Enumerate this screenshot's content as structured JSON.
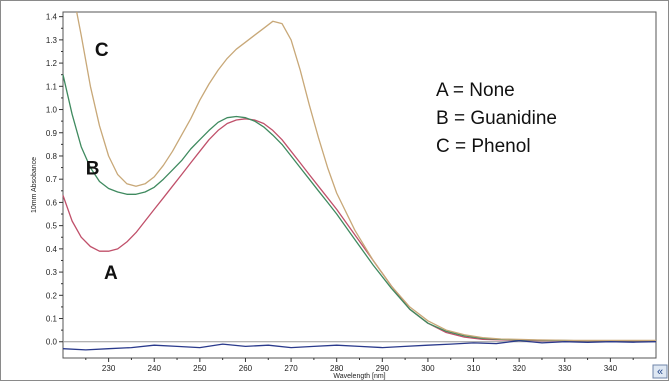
{
  "chart_data": {
    "type": "line",
    "xlabel": "Wavelength [nm]",
    "ylabel": "10mm Absobance",
    "xlim": [
      220,
      350
    ],
    "ylim": [
      -0.07,
      1.42
    ],
    "x_ticks": [
      230,
      240,
      250,
      260,
      270,
      280,
      290,
      300,
      310,
      320,
      330,
      340
    ],
    "y_ticks": [
      0.0,
      0.1,
      0.2,
      0.3,
      0.4,
      0.5,
      0.6,
      0.7,
      0.8,
      0.9,
      1.0,
      1.1,
      1.2,
      1.3,
      1.4
    ],
    "grid": false,
    "legend": {
      "position": "top-right",
      "entries": [
        "A = None",
        "B = Guanidine",
        "C = Phenol"
      ]
    },
    "series": [
      {
        "label": "A",
        "color": "#c0506a",
        "x": [
          220,
          222,
          224,
          226,
          228,
          230,
          232,
          234,
          236,
          238,
          240,
          242,
          244,
          246,
          248,
          250,
          252,
          254,
          256,
          258,
          260,
          262,
          264,
          266,
          268,
          270,
          272,
          274,
          276,
          278,
          280,
          284,
          288,
          292,
          296,
          300,
          304,
          308,
          312,
          316,
          320,
          324,
          328,
          332,
          336,
          340,
          344,
          350
        ],
        "y": [
          0.63,
          0.52,
          0.45,
          0.41,
          0.39,
          0.39,
          0.4,
          0.43,
          0.47,
          0.52,
          0.57,
          0.62,
          0.67,
          0.72,
          0.77,
          0.82,
          0.87,
          0.91,
          0.94,
          0.955,
          0.96,
          0.955,
          0.94,
          0.91,
          0.87,
          0.82,
          0.77,
          0.72,
          0.67,
          0.62,
          0.57,
          0.46,
          0.35,
          0.24,
          0.14,
          0.08,
          0.04,
          0.02,
          0.01,
          0.008,
          0.006,
          0.005,
          0.005,
          0.004,
          0.004,
          0.004,
          0.004,
          0.004
        ]
      },
      {
        "label": "B",
        "color": "#3f8a5f",
        "x": [
          220,
          222,
          224,
          226,
          228,
          230,
          232,
          234,
          236,
          238,
          240,
          242,
          244,
          246,
          248,
          250,
          252,
          254,
          256,
          258,
          260,
          262,
          264,
          266,
          268,
          270,
          272,
          274,
          276,
          278,
          280,
          284,
          288,
          292,
          296,
          300,
          304,
          308,
          312,
          316,
          320,
          324,
          328,
          332,
          336,
          340,
          344,
          350
        ],
        "y": [
          1.15,
          0.98,
          0.84,
          0.75,
          0.69,
          0.66,
          0.645,
          0.635,
          0.635,
          0.645,
          0.665,
          0.7,
          0.74,
          0.78,
          0.83,
          0.87,
          0.91,
          0.945,
          0.965,
          0.97,
          0.965,
          0.95,
          0.925,
          0.89,
          0.85,
          0.8,
          0.75,
          0.7,
          0.65,
          0.6,
          0.55,
          0.44,
          0.33,
          0.23,
          0.14,
          0.08,
          0.045,
          0.025,
          0.015,
          0.01,
          0.008,
          0.007,
          0.006,
          0.005,
          0.005,
          0.005,
          0.005,
          0.005
        ]
      },
      {
        "label": "C",
        "color": "#c8a878",
        "x": [
          223,
          224,
          225,
          226,
          228,
          230,
          232,
          234,
          236,
          238,
          240,
          242,
          244,
          246,
          248,
          250,
          252,
          254,
          256,
          258,
          260,
          262,
          264,
          266,
          268,
          270,
          272,
          274,
          276,
          278,
          280,
          284,
          288,
          292,
          296,
          300,
          304,
          308,
          312,
          316,
          320,
          324,
          328,
          332,
          336,
          340,
          344,
          350
        ],
        "y": [
          1.42,
          1.32,
          1.21,
          1.1,
          0.93,
          0.8,
          0.72,
          0.68,
          0.67,
          0.68,
          0.71,
          0.76,
          0.82,
          0.89,
          0.96,
          1.04,
          1.11,
          1.17,
          1.22,
          1.26,
          1.29,
          1.32,
          1.35,
          1.38,
          1.37,
          1.3,
          1.17,
          1.02,
          0.88,
          0.75,
          0.64,
          0.48,
          0.35,
          0.24,
          0.15,
          0.09,
          0.05,
          0.03,
          0.018,
          0.012,
          0.01,
          0.008,
          0.007,
          0.006,
          0.006,
          0.006,
          0.006,
          0.006
        ]
      },
      {
        "label": "baseline",
        "color": "#2a3a8c",
        "x": [
          220,
          225,
          230,
          235,
          240,
          245,
          250,
          255,
          260,
          265,
          270,
          275,
          280,
          285,
          290,
          295,
          300,
          305,
          310,
          315,
          320,
          325,
          330,
          335,
          340,
          345,
          350
        ],
        "y": [
          -0.03,
          -0.035,
          -0.03,
          -0.025,
          -0.015,
          -0.02,
          -0.025,
          -0.01,
          -0.02,
          -0.015,
          -0.025,
          -0.02,
          -0.015,
          -0.02,
          -0.025,
          -0.02,
          -0.015,
          -0.01,
          -0.005,
          -0.008,
          0.005,
          -0.005,
          0.0,
          -0.003,
          0.0,
          -0.002,
          0.0
        ]
      }
    ],
    "curve_labels": [
      {
        "text": "C",
        "x": 227,
        "y": 1.23
      },
      {
        "text": "B",
        "x": 225,
        "y": 0.72
      },
      {
        "text": "A",
        "x": 229,
        "y": 0.27
      }
    ],
    "scroll_glyph": "«"
  }
}
